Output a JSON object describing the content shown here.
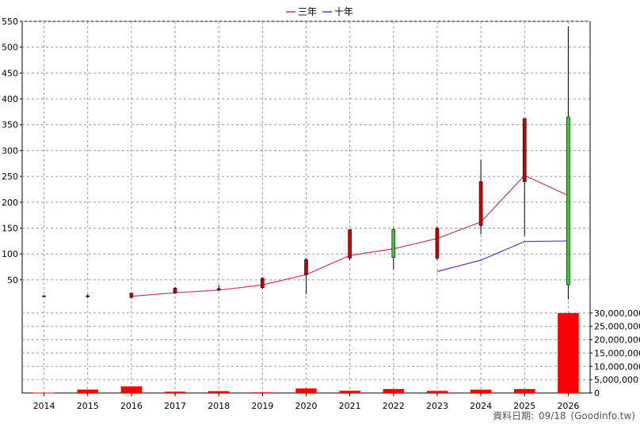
{
  "legend": {
    "items": [
      {
        "label": "三年",
        "color": "#cc3366"
      },
      {
        "label": "十年",
        "color": "#6633cc"
      }
    ]
  },
  "footer": {
    "label": "資料日期:",
    "date": "09/18",
    "source": "(Goodinfo.tw)"
  },
  "chart_data": {
    "type": "candlestick",
    "categories": [
      "2014",
      "2015",
      "2016",
      "2017",
      "2018",
      "2019",
      "2020",
      "2021",
      "2022",
      "2023",
      "2024",
      "2025",
      "2026"
    ],
    "price_axis": {
      "ylim": [
        10,
        550
      ],
      "ticks": [
        50,
        100,
        150,
        200,
        250,
        300,
        350,
        400,
        450,
        500,
        550
      ]
    },
    "volume_axis": {
      "ylim": [
        0,
        35000000
      ],
      "ticks": [
        0,
        5000000,
        10000000,
        15000000,
        20000000,
        25000000,
        30000000
      ],
      "tick_labels": [
        "0",
        "5,000,000",
        "10,000,000",
        "15,000,000",
        "20,000,000",
        "25,000,000",
        "30,000,000"
      ]
    },
    "candles": [
      {
        "open": 19,
        "close": 19,
        "high": 20,
        "low": 18,
        "color": "#000000"
      },
      {
        "open": 18,
        "close": 19,
        "high": 22,
        "low": 15,
        "color": "#000000"
      },
      {
        "open": 16,
        "close": 24,
        "high": 25,
        "low": 14,
        "color": "#cc0000"
      },
      {
        "open": 25,
        "close": 34,
        "high": 36,
        "low": 23,
        "color": "#cc0000"
      },
      {
        "open": 31,
        "close": 33,
        "high": 40,
        "low": 28,
        "color": "#cc0000"
      },
      {
        "open": 35,
        "close": 53,
        "high": 55,
        "low": 32,
        "color": "#cc0000"
      },
      {
        "open": 60,
        "close": 89,
        "high": 92,
        "low": 22,
        "color": "#cc0000"
      },
      {
        "open": 92,
        "close": 147,
        "high": 148,
        "low": 88,
        "color": "#cc0000"
      },
      {
        "open": 147,
        "close": 93,
        "high": 150,
        "low": 70,
        "color": "#33cc33"
      },
      {
        "open": 92,
        "close": 150,
        "high": 152,
        "low": 88,
        "color": "#cc0000"
      },
      {
        "open": 155,
        "close": 240,
        "high": 282,
        "low": 138,
        "color": "#cc0000"
      },
      {
        "open": 240,
        "close": 362,
        "high": 362,
        "low": 135,
        "color": "#cc0000"
      },
      {
        "open": 365,
        "close": 40,
        "high": 540,
        "low": 12,
        "color": "#33cc33"
      }
    ],
    "volume": [
      150000,
      1300000,
      2500000,
      500000,
      700000,
      250000,
      1700000,
      850000,
      1500000,
      800000,
      1250000,
      1500000,
      30000000
    ],
    "series": [
      {
        "name": "三年",
        "color": "#cc3366",
        "values": [
          null,
          null,
          18,
          25,
          30,
          40,
          60,
          97,
          110,
          130,
          162,
          252,
          213
        ]
      },
      {
        "name": "十年",
        "color": "#6633cc",
        "values": [
          null,
          null,
          null,
          null,
          null,
          null,
          null,
          null,
          null,
          66,
          88,
          124,
          125
        ]
      }
    ]
  }
}
